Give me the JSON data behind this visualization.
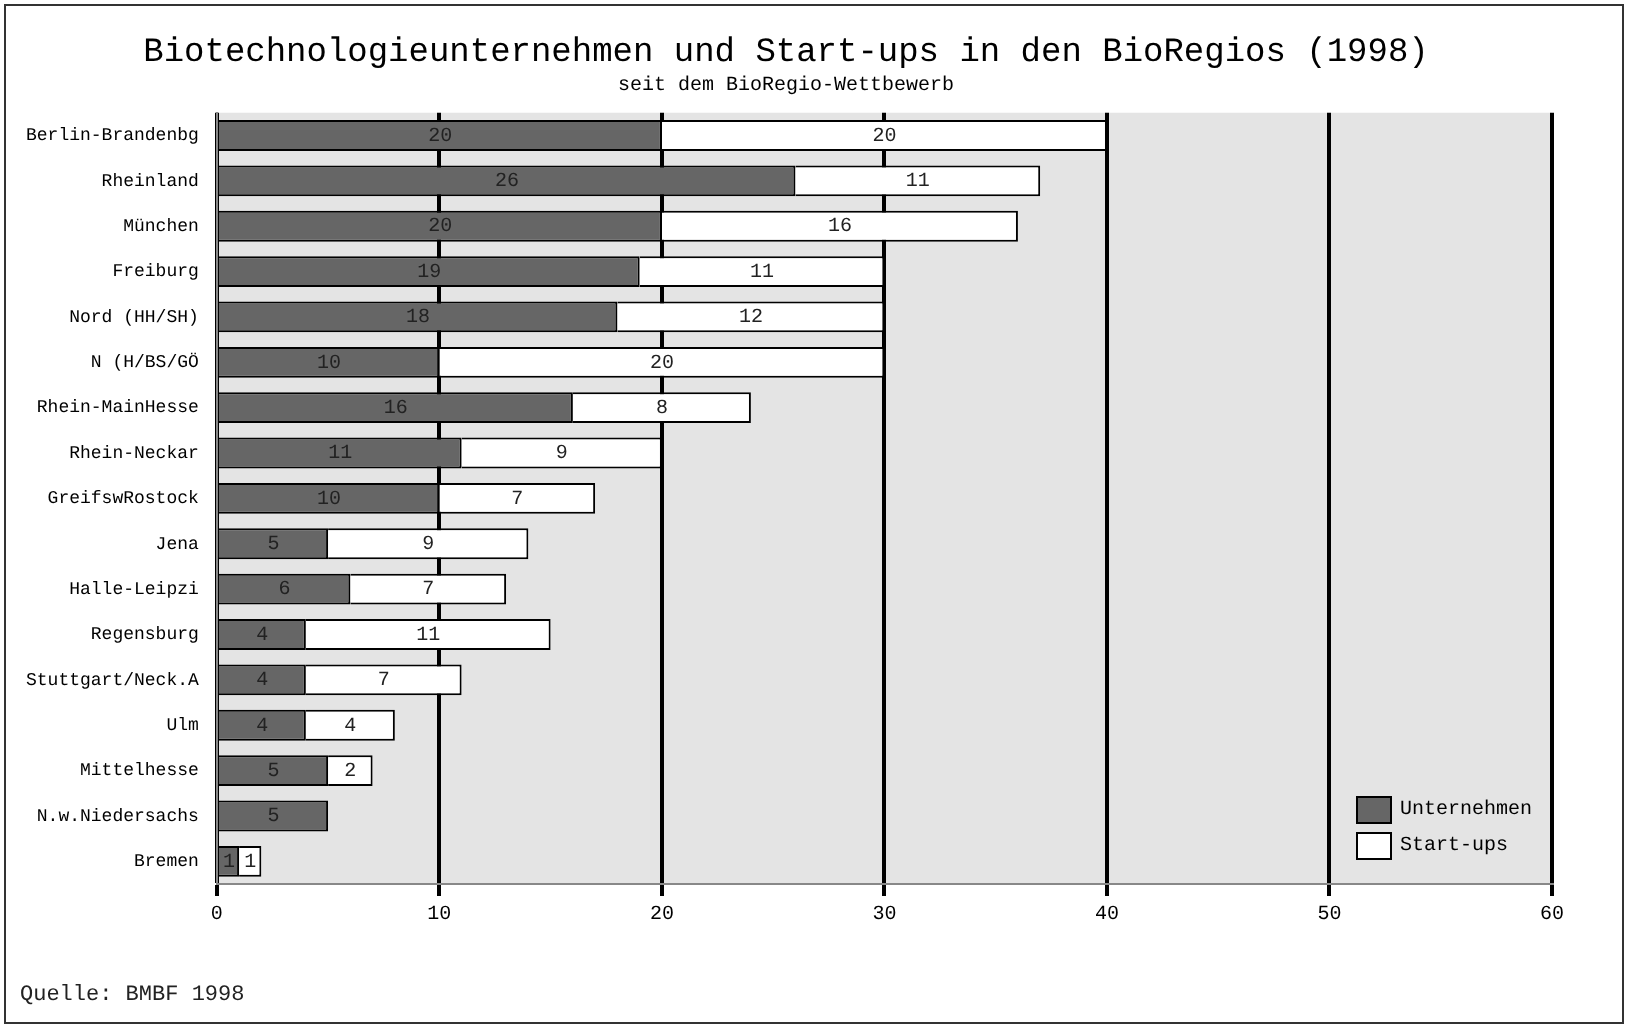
{
  "chart_data": {
    "type": "bar",
    "orientation": "horizontal",
    "stacked": true,
    "title": "Biotechnologieunternehmen und Start-ups in den BioRegios (1998)",
    "subtitle": "seit dem BioRegio-Wettbewerb",
    "categories": [
      "Berlin-Brandenbg",
      "Rheinland",
      "München",
      "Freiburg",
      "Nord (HH/SH)",
      "N (H/BS/GÖ",
      "Rhein-MainHesse",
      "Rhein-Neckar",
      "GreifswRostock",
      "Jena",
      "Halle-Leipzi",
      "Regensburg",
      "Stuttgart/Neck.A",
      "Ulm",
      "Mittelhesse",
      "N.w.Niedersachs",
      "Bremen"
    ],
    "series": [
      {
        "name": "Unternehmen",
        "color": "#666666",
        "values": [
          20,
          26,
          20,
          19,
          18,
          10,
          16,
          11,
          10,
          5,
          6,
          4,
          4,
          4,
          5,
          5,
          1
        ]
      },
      {
        "name": "Start-ups",
        "color": "#ffffff",
        "values": [
          20,
          11,
          16,
          11,
          12,
          20,
          8,
          9,
          7,
          9,
          7,
          11,
          7,
          4,
          2,
          null,
          1
        ]
      }
    ],
    "xlim": [
      0,
      60
    ],
    "xticks": [
      0,
      10,
      20,
      30,
      40,
      50,
      60
    ],
    "grid": "x",
    "legend": "bottom right",
    "data_labels": true,
    "annotations": [
      "Quelle: BMBF 1998"
    ]
  }
}
